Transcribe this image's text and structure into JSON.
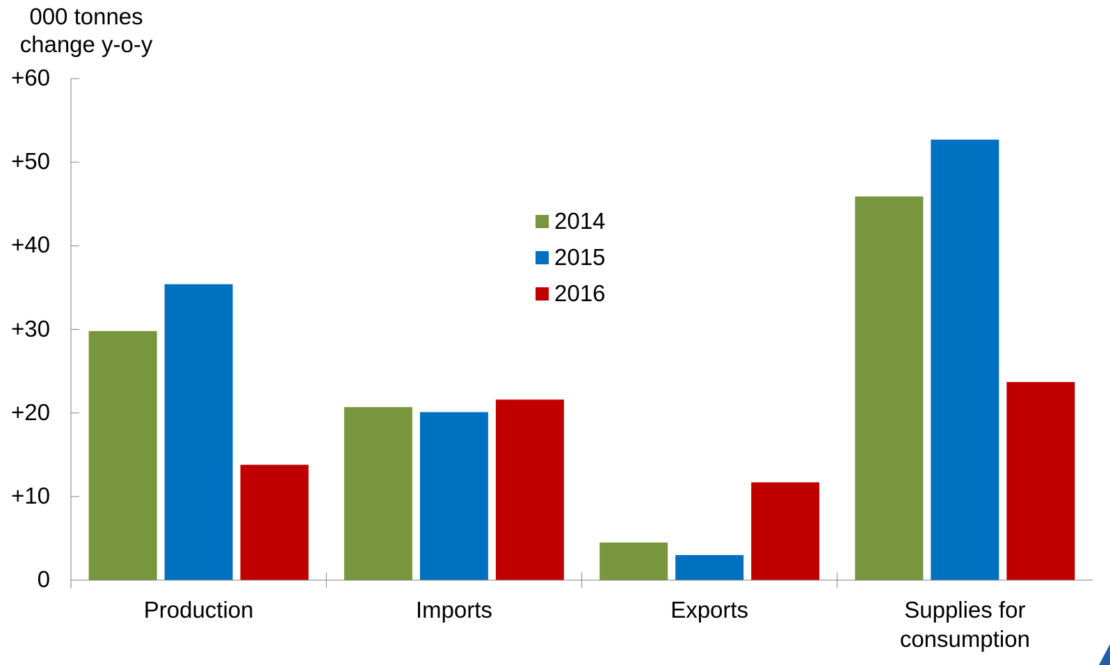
{
  "y_unit_line1": "000 tonnes",
  "y_unit_line2": "change y-o-y",
  "colors": {
    "2014": "#77963D",
    "2015": "#0070C0",
    "2016": "#C00000",
    "axis": "#808080"
  },
  "chart_data": {
    "type": "bar",
    "categories": [
      "Production",
      "Imports",
      "Exports",
      "Supplies for consumption"
    ],
    "category_labels": [
      [
        "Production"
      ],
      [
        "Imports"
      ],
      [
        "Exports"
      ],
      [
        "Supplies for",
        "consumption"
      ]
    ],
    "series": [
      {
        "name": "2014",
        "values": [
          29.8,
          20.7,
          4.5,
          45.9
        ]
      },
      {
        "name": "2015",
        "values": [
          35.4,
          20.1,
          3.0,
          52.7
        ]
      },
      {
        "name": "2016",
        "values": [
          13.8,
          21.6,
          11.7,
          23.7
        ]
      }
    ],
    "yticks": [
      "0",
      "+10",
      "+20",
      "+30",
      "+40",
      "+50",
      "+60"
    ],
    "ylim": [
      0,
      60
    ],
    "legend_position": "center-top"
  }
}
